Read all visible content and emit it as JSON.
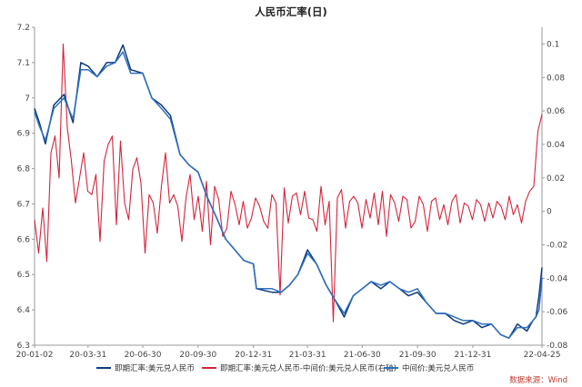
{
  "chart_data": {
    "type": "line",
    "title": "人民币汇率(日)",
    "source": "数据来源：Wind",
    "x_ticks": [
      "20-01-02",
      "20-03-31",
      "20-06-30",
      "20-09-30",
      "20-12-31",
      "21-03-31",
      "21-06-30",
      "21-09-30",
      "21-12-31",
      "22-04-25"
    ],
    "ylim_left": [
      6.3,
      7.2
    ],
    "ylim_right": [
      -0.08,
      0.11
    ],
    "left_ticks": [
      "6.3",
      "6.4",
      "6.5",
      "6.6",
      "6.7",
      "6.8",
      "6.9",
      "7",
      "7.1",
      "7.2"
    ],
    "right_ticks": [
      "-0.08",
      "-0.06",
      "-0.04",
      "-0.02",
      "0",
      "0.02",
      "0.04",
      "0.06",
      "0.08",
      "0.1"
    ],
    "legend_position": "bottom",
    "grid": false,
    "colors": {
      "blue": "#0b3a7a",
      "blue_light": "#2f6fc0",
      "red": "#d3253c"
    },
    "series": [
      {
        "name": "即期汇率:美元兑人民币",
        "axis": "left",
        "color": "#0b3a7a",
        "points": [
          [
            "20-01-02",
            6.97
          ],
          [
            "20-01-10",
            6.93
          ],
          [
            "20-01-20",
            6.87
          ],
          [
            "20-02-03",
            6.98
          ],
          [
            "20-02-20",
            7.01
          ],
          [
            "20-03-06",
            6.93
          ],
          [
            "20-03-19",
            7.1
          ],
          [
            "20-03-31",
            7.09
          ],
          [
            "20-04-15",
            7.06
          ],
          [
            "20-05-01",
            7.1
          ],
          [
            "20-05-15",
            7.1
          ],
          [
            "20-05-28",
            7.15
          ],
          [
            "20-06-10",
            7.08
          ],
          [
            "20-06-30",
            7.07
          ],
          [
            "20-07-15",
            7.0
          ],
          [
            "20-07-31",
            6.98
          ],
          [
            "20-08-15",
            6.95
          ],
          [
            "20-08-31",
            6.84
          ],
          [
            "20-09-15",
            6.81
          ],
          [
            "20-09-30",
            6.79
          ],
          [
            "20-10-15",
            6.72
          ],
          [
            "20-10-31",
            6.66
          ],
          [
            "20-11-15",
            6.6
          ],
          [
            "20-11-30",
            6.57
          ],
          [
            "20-12-15",
            6.54
          ],
          [
            "20-12-31",
            6.53
          ],
          [
            "21-01-05",
            6.46
          ],
          [
            "21-01-31",
            6.45
          ],
          [
            "21-02-15",
            6.45
          ],
          [
            "21-03-01",
            6.47
          ],
          [
            "21-03-15",
            6.5
          ],
          [
            "21-03-31",
            6.57
          ],
          [
            "21-04-15",
            6.53
          ],
          [
            "21-05-01",
            6.47
          ],
          [
            "21-05-15",
            6.43
          ],
          [
            "21-05-31",
            6.38
          ],
          [
            "21-06-15",
            6.44
          ],
          [
            "21-06-30",
            6.46
          ],
          [
            "21-07-15",
            6.48
          ],
          [
            "21-07-31",
            6.46
          ],
          [
            "21-08-15",
            6.48
          ],
          [
            "21-08-31",
            6.46
          ],
          [
            "21-09-15",
            6.44
          ],
          [
            "21-09-30",
            6.45
          ],
          [
            "21-10-15",
            6.42
          ],
          [
            "21-10-31",
            6.39
          ],
          [
            "21-11-15",
            6.39
          ],
          [
            "21-11-30",
            6.37
          ],
          [
            "21-12-15",
            6.36
          ],
          [
            "21-12-31",
            6.37
          ],
          [
            "22-01-15",
            6.35
          ],
          [
            "22-01-31",
            6.36
          ],
          [
            "22-02-15",
            6.33
          ],
          [
            "22-03-01",
            6.32
          ],
          [
            "22-03-15",
            6.36
          ],
          [
            "22-03-31",
            6.34
          ],
          [
            "22-04-10",
            6.37
          ],
          [
            "22-04-15",
            6.38
          ],
          [
            "22-04-20",
            6.44
          ],
          [
            "22-04-25",
            6.52
          ]
        ]
      },
      {
        "name": "即期汇率:美元兑人民币-中间价:美元兑人民币(右轴)",
        "axis": "right",
        "color": "#d3253c",
        "samples": [
          -0.005,
          -0.025,
          0.002,
          -0.03,
          0.035,
          0.045,
          0.02,
          0.1,
          0.05,
          0.03,
          0.005,
          0.02,
          0.035,
          0.012,
          0.01,
          0.022,
          -0.018,
          0.03,
          0.04,
          0.045,
          -0.008,
          0.042,
          0.005,
          -0.005,
          0.025,
          0.032,
          0.017,
          -0.025,
          0.01,
          0.005,
          -0.013,
          0.015,
          0.035,
          0.005,
          0.01,
          0.003,
          -0.018,
          0.008,
          0.022,
          -0.005,
          0.009,
          -0.012,
          0.018,
          -0.02,
          0.015,
          0.007,
          -0.015,
          -0.01,
          0.012,
          0.004,
          -0.008,
          0.006,
          -0.01,
          -0.004,
          0.008,
          0.003,
          -0.006,
          -0.01,
          0.01,
          0.005,
          -0.05,
          0.014,
          -0.007,
          0.009,
          0.011,
          -0.002,
          0.012,
          -0.004,
          -0.005,
          -0.012,
          0.015,
          -0.008,
          0.006,
          -0.066,
          0.008,
          0.013,
          -0.01,
          0.006,
          0.009,
          0.005,
          -0.01,
          0.007,
          -0.004,
          0.011,
          -0.008,
          0.012,
          -0.015,
          0.01,
          0.005,
          -0.006,
          0.009,
          0.007,
          -0.01,
          -0.006,
          0.009,
          0.004,
          -0.012,
          0.006,
          0.008,
          -0.005,
          0.004,
          -0.008,
          0.006,
          0.01,
          -0.007,
          0.005,
          0.003,
          -0.005,
          0.007,
          0.004,
          -0.006,
          0.005,
          -0.004,
          0.006,
          0.003,
          -0.005,
          0.009,
          -0.002,
          0.004,
          -0.007,
          0.006,
          0.012,
          0.015,
          0.048,
          0.058
        ]
      },
      {
        "name": "中间价:美元兑人民币",
        "axis": "left",
        "color": "#2f6fc0",
        "points": [
          [
            "20-01-02",
            6.96
          ],
          [
            "20-01-10",
            6.92
          ],
          [
            "20-01-20",
            6.88
          ],
          [
            "20-02-03",
            6.97
          ],
          [
            "20-02-20",
            7.0
          ],
          [
            "20-03-06",
            6.94
          ],
          [
            "20-03-19",
            7.08
          ],
          [
            "20-03-31",
            7.08
          ],
          [
            "20-04-15",
            7.06
          ],
          [
            "20-05-01",
            7.09
          ],
          [
            "20-05-15",
            7.1
          ],
          [
            "20-05-28",
            7.13
          ],
          [
            "20-06-10",
            7.07
          ],
          [
            "20-06-30",
            7.07
          ],
          [
            "20-07-15",
            7.0
          ],
          [
            "20-07-31",
            6.97
          ],
          [
            "20-08-15",
            6.94
          ],
          [
            "20-08-31",
            6.84
          ],
          [
            "20-09-15",
            6.81
          ],
          [
            "20-09-30",
            6.79
          ],
          [
            "20-10-15",
            6.72
          ],
          [
            "20-10-31",
            6.66
          ],
          [
            "20-11-15",
            6.6
          ],
          [
            "20-11-30",
            6.57
          ],
          [
            "20-12-15",
            6.54
          ],
          [
            "20-12-31",
            6.53
          ],
          [
            "21-01-05",
            6.46
          ],
          [
            "21-01-31",
            6.46
          ],
          [
            "21-02-15",
            6.45
          ],
          [
            "21-03-01",
            6.47
          ],
          [
            "21-03-15",
            6.5
          ],
          [
            "21-03-31",
            6.56
          ],
          [
            "21-04-15",
            6.53
          ],
          [
            "21-05-01",
            6.47
          ],
          [
            "21-05-15",
            6.43
          ],
          [
            "21-05-31",
            6.39
          ],
          [
            "21-06-15",
            6.44
          ],
          [
            "21-06-30",
            6.46
          ],
          [
            "21-07-15",
            6.48
          ],
          [
            "21-07-31",
            6.47
          ],
          [
            "21-08-15",
            6.48
          ],
          [
            "21-08-31",
            6.46
          ],
          [
            "21-09-15",
            6.45
          ],
          [
            "21-09-30",
            6.46
          ],
          [
            "21-10-15",
            6.42
          ],
          [
            "21-10-31",
            6.39
          ],
          [
            "21-11-15",
            6.39
          ],
          [
            "21-11-30",
            6.38
          ],
          [
            "21-12-15",
            6.37
          ],
          [
            "21-12-31",
            6.37
          ],
          [
            "22-01-15",
            6.36
          ],
          [
            "22-01-31",
            6.36
          ],
          [
            "22-02-15",
            6.33
          ],
          [
            "22-03-01",
            6.32
          ],
          [
            "22-03-15",
            6.35
          ],
          [
            "22-03-31",
            6.35
          ],
          [
            "22-04-10",
            6.37
          ],
          [
            "22-04-15",
            6.38
          ],
          [
            "22-04-20",
            6.4
          ],
          [
            "22-04-25",
            6.49
          ]
        ]
      }
    ]
  }
}
